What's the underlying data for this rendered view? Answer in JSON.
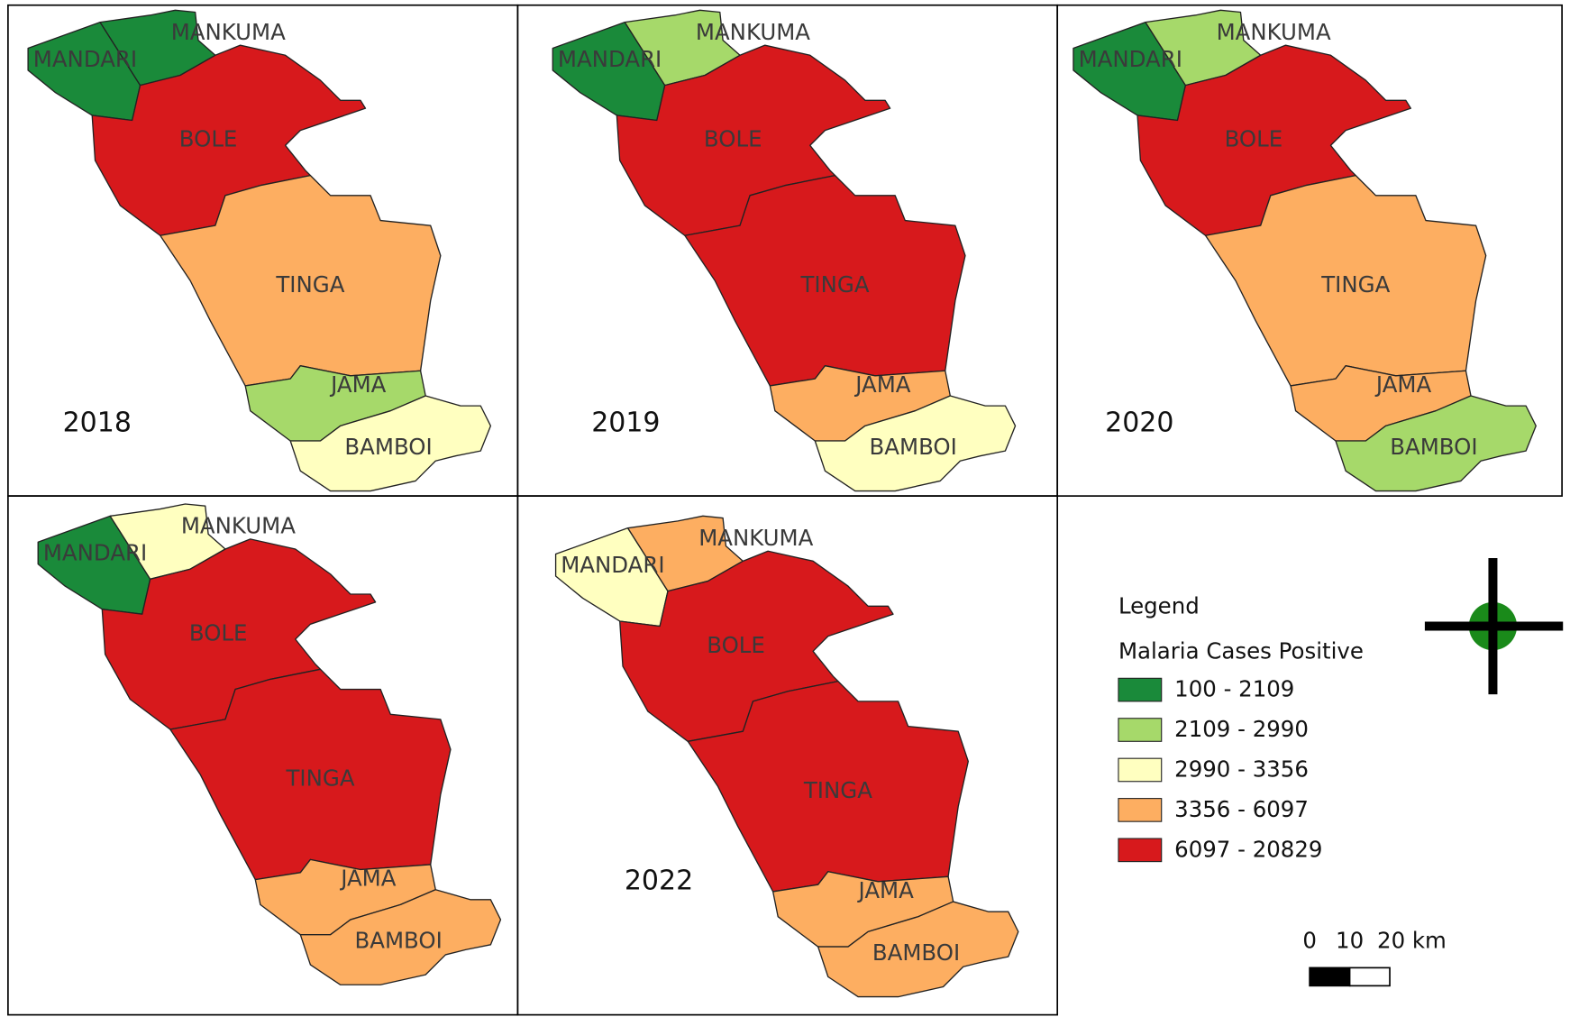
{
  "panels": [
    {
      "year": "2018",
      "regions": [
        {
          "name": "MANDARI",
          "color": "#1a8a3a"
        },
        {
          "name": "MANKUMA",
          "color": "#1a8a3a"
        },
        {
          "name": "BOLE",
          "color": "#d7191c"
        },
        {
          "name": "TINGA",
          "color": "#fdae61"
        },
        {
          "name": "JAMA",
          "color": "#a6d96a"
        },
        {
          "name": "BAMBOI",
          "color": "#ffffc0"
        }
      ]
    },
    {
      "year": "2019",
      "regions": [
        {
          "name": "MANDARI",
          "color": "#1a8a3a"
        },
        {
          "name": "MANKUMA",
          "color": "#a6d96a"
        },
        {
          "name": "BOLE",
          "color": "#d7191c"
        },
        {
          "name": "TINGA",
          "color": "#d7191c"
        },
        {
          "name": "JAMA",
          "color": "#fdae61"
        },
        {
          "name": "BAMBOI",
          "color": "#ffffc0"
        }
      ]
    },
    {
      "year": "2020",
      "regions": [
        {
          "name": "MANDARI",
          "color": "#1a8a3a"
        },
        {
          "name": "MANKUMA",
          "color": "#a6d96a"
        },
        {
          "name": "BOLE",
          "color": "#d7191c"
        },
        {
          "name": "TINGA",
          "color": "#fdae61"
        },
        {
          "name": "JAMA",
          "color": "#fdae61"
        },
        {
          "name": "BAMBOI",
          "color": "#a6d96a"
        }
      ]
    },
    {
      "year": null,
      "regions": [
        {
          "name": "MANDARI",
          "color": "#1a8a3a"
        },
        {
          "name": "MANKUMA",
          "color": "#ffffc0"
        },
        {
          "name": "BOLE",
          "color": "#d7191c"
        },
        {
          "name": "TINGA",
          "color": "#d7191c"
        },
        {
          "name": "JAMA",
          "color": "#fdae61"
        },
        {
          "name": "BAMBOI",
          "color": "#fdae61"
        }
      ]
    },
    {
      "year": "2022",
      "regions": [
        {
          "name": "MANDARI",
          "color": "#ffffc0"
        },
        {
          "name": "MANKUMA",
          "color": "#fdae61"
        },
        {
          "name": "BOLE",
          "color": "#d7191c"
        },
        {
          "name": "TINGA",
          "color": "#d7191c"
        },
        {
          "name": "JAMA",
          "color": "#fdae61"
        },
        {
          "name": "BAMBOI",
          "color": "#fdae61"
        }
      ]
    }
  ],
  "legend": {
    "title": "Legend",
    "subtitle": "Malaria Cases Positive",
    "classes": [
      {
        "label": "100 - 2109",
        "color": "#1a8a3a"
      },
      {
        "label": "2109 - 2990",
        "color": "#a6d96a"
      },
      {
        "label": "2990 - 3356",
        "color": "#ffffc0"
      },
      {
        "label": "3356 - 6097",
        "color": "#fdae61"
      },
      {
        "label": "6097 - 20829",
        "color": "#d7191c"
      }
    ]
  },
  "scale_bar": {
    "labels": [
      "0",
      "10",
      "20 km"
    ]
  }
}
